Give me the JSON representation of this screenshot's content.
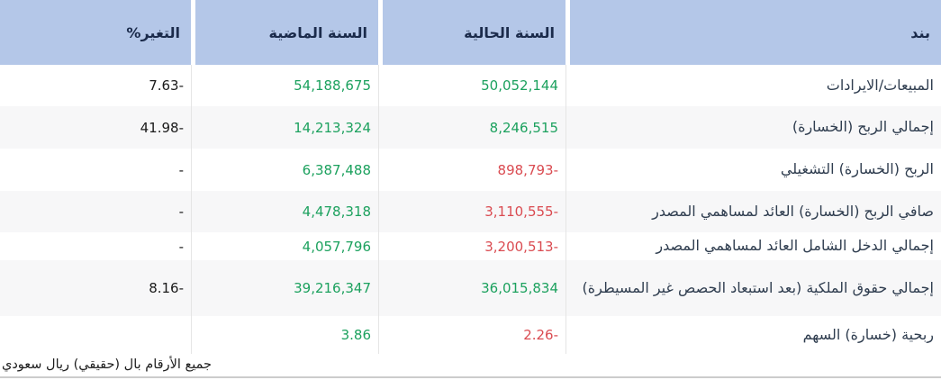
{
  "table": {
    "columns": [
      {
        "key": "item",
        "label": "بند"
      },
      {
        "key": "current",
        "label": "السنة الحالية"
      },
      {
        "key": "previous",
        "label": "السنة الماضية"
      },
      {
        "key": "change",
        "label": "التغير%"
      }
    ],
    "rows": [
      {
        "item": "المبيعات/الايرادات",
        "current": "50,052,144",
        "current_color": "green",
        "previous": "54,188,675",
        "previous_color": "green",
        "change": "7.63-",
        "change_color": "dark"
      },
      {
        "item": "إجمالي الربح (الخسارة)",
        "current": "8,246,515",
        "current_color": "green",
        "previous": "14,213,324",
        "previous_color": "green",
        "change": "41.98-",
        "change_color": "dark"
      },
      {
        "item": "الربح (الخسارة) التشغيلي",
        "current": "898,793-",
        "current_color": "red",
        "previous": "6,387,488",
        "previous_color": "green",
        "change": "-",
        "change_color": "dark"
      },
      {
        "item": "صافي الربح (الخسارة) العائد لمساهمي المصدر",
        "current": "3,110,555-",
        "current_color": "red",
        "previous": "4,478,318",
        "previous_color": "green",
        "change": "-",
        "change_color": "dark"
      },
      {
        "item": "إجمالي الدخل الشامل العائد لمساهمي المصدر",
        "current": "3,200,513-",
        "current_color": "red",
        "previous": "4,057,796",
        "previous_color": "green",
        "change": "-",
        "change_color": "dark"
      },
      {
        "item": "إجمالي حقوق الملكية (بعد استبعاد الحصص غير المسيطرة)",
        "current": "36,015,834",
        "current_color": "green",
        "previous": "39,216,347",
        "previous_color": "green",
        "change": "8.16-",
        "change_color": "dark"
      },
      {
        "item": "ربحية (خسارة) السهم",
        "current": "2.26-",
        "current_color": "red",
        "previous": "3.86",
        "previous_color": "green",
        "change": "",
        "change_color": "dark"
      }
    ]
  },
  "footer": {
    "note": "جميع الأرقام بال (حقيقي) ريال سعودي"
  },
  "colors": {
    "header_bg": "#b4c7e8",
    "header_text": "#1b2b4b",
    "positive_value": "#1ca15e",
    "negative_value": "#da4b51",
    "row_alt_bg": "#f7f7f8"
  }
}
